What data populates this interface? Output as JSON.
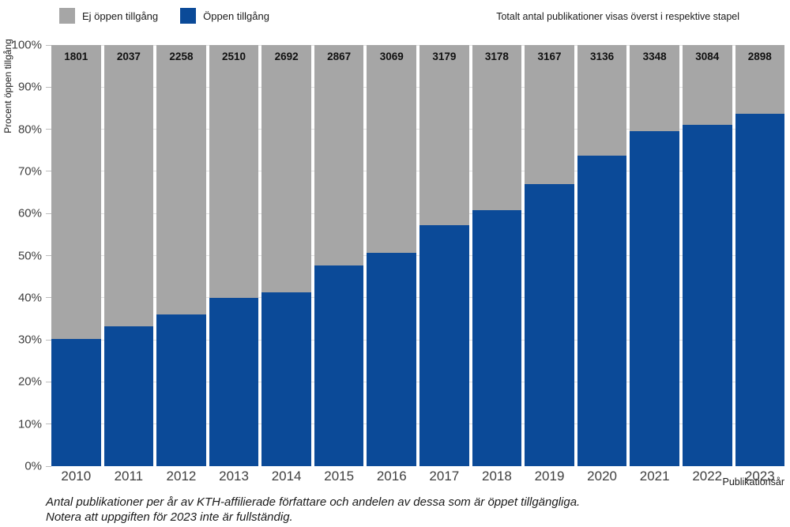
{
  "legend": {
    "items": [
      {
        "label": "Ej öppen tillgång",
        "color": "#a6a6a6"
      },
      {
        "label": "Öppen tillgång",
        "color": "#0b4a98"
      }
    ]
  },
  "note": "Totalt antal publikationer visas överst i respektive stapel",
  "axes": {
    "y_title": "Procent öppen tillgång",
    "x_title": "Publikationsår"
  },
  "caption": {
    "line1": "Antal publikationer per år av KTH-affilierade författare och andelen av dessa som är öppet tillgängliga.",
    "line2": "Notera att uppgiften för 2023 inte är fullständig."
  },
  "chart_data": {
    "type": "bar",
    "stacked": true,
    "title": "",
    "categories": [
      "2010",
      "2011",
      "2012",
      "2013",
      "2014",
      "2015",
      "2016",
      "2017",
      "2018",
      "2019",
      "2020",
      "2021",
      "2022",
      "2023"
    ],
    "totals": [
      1801,
      2037,
      2258,
      2510,
      2692,
      2867,
      3069,
      3179,
      3178,
      3167,
      3136,
      3348,
      3084,
      2898
    ],
    "series": [
      {
        "name": "Öppen tillgång",
        "color": "#0b4a98",
        "values_percent": [
          30.2,
          33.3,
          36.0,
          40.0,
          41.3,
          47.6,
          50.7,
          57.3,
          60.7,
          66.9,
          73.8,
          79.6,
          81.1,
          83.6
        ]
      },
      {
        "name": "Ej öppen tillgång",
        "color": "#a6a6a6",
        "values_percent": [
          69.8,
          66.7,
          64.0,
          60.0,
          58.7,
          52.4,
          49.3,
          42.7,
          39.3,
          33.1,
          26.2,
          20.4,
          18.9,
          16.4
        ]
      }
    ],
    "totals_note": "Totalt antal publikationer visas överst i respektive stapel",
    "ylabel": "Procent öppen tillgång",
    "xlabel": "Publikationsår",
    "ylim": [
      0,
      100
    ],
    "ytick_step": 10,
    "ytick_format": "percent",
    "grid": true,
    "legend_position": "top-left"
  },
  "colors": {
    "grid": "#e2e2e2",
    "tick_text": "#3f3f3f",
    "bar_label": "#111111",
    "background": "#ffffff"
  }
}
